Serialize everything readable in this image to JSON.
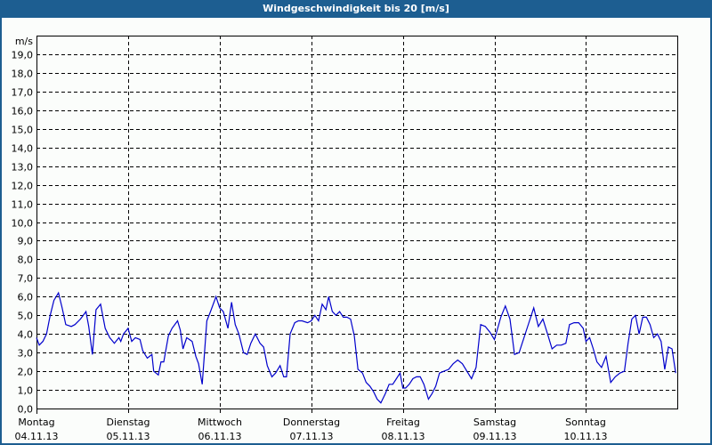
{
  "title": "Windgeschwindigkeit bis 20 [m/s]",
  "colors": {
    "titlebar": "#1d5e91",
    "background": "#fbfdfb",
    "line": "#0000cc",
    "grid": "#000000"
  },
  "chart_data": {
    "type": "line",
    "title": "Windgeschwindigkeit bis 20 [m/s]",
    "xlabel": "",
    "ylabel": "m/s",
    "ylim": [
      0,
      20
    ],
    "yticks": [
      "0,0",
      "1,0",
      "2,0",
      "3,0",
      "4,0",
      "5,0",
      "6,0",
      "7,0",
      "8,0",
      "9,0",
      "10,0",
      "11,0",
      "12,0",
      "13,0",
      "14,0",
      "15,0",
      "16,0",
      "17,0",
      "18,0",
      "19,0"
    ],
    "grid": true,
    "days": [
      {
        "weekday": "Montag",
        "date": "04.11.13"
      },
      {
        "weekday": "Dienstag",
        "date": "05.11.13"
      },
      {
        "weekday": "Mittwoch",
        "date": "06.11.13"
      },
      {
        "weekday": "Donnerstag",
        "date": "07.11.13"
      },
      {
        "weekday": "Freitag",
        "date": "08.11.13"
      },
      {
        "weekday": "Samstag",
        "date": "09.11.13"
      },
      {
        "weekday": "Sonntag",
        "date": "10.11.13"
      }
    ],
    "series": [
      {
        "name": "Windgeschwindigkeit",
        "x_days": [
          0.0,
          0.03,
          0.07,
          0.11,
          0.15,
          0.19,
          0.24,
          0.28,
          0.32,
          0.38,
          0.42,
          0.48,
          0.54,
          0.57,
          0.61,
          0.65,
          0.7,
          0.75,
          0.8,
          0.85,
          0.9,
          0.92,
          0.95,
          1.0,
          1.04,
          1.08,
          1.13,
          1.16,
          1.21,
          1.26,
          1.28,
          1.33,
          1.36,
          1.39,
          1.44,
          1.48,
          1.54,
          1.57,
          1.6,
          1.64,
          1.7,
          1.74,
          1.77,
          1.81,
          1.86,
          1.9,
          1.96,
          2.0,
          2.04,
          2.09,
          2.13,
          2.17,
          2.21,
          2.26,
          2.3,
          2.34,
          2.39,
          2.44,
          2.48,
          2.52,
          2.57,
          2.61,
          2.66,
          2.7,
          2.73,
          2.77,
          2.82,
          2.86,
          2.9,
          2.96,
          3.0,
          3.04,
          3.08,
          3.12,
          3.16,
          3.19,
          3.23,
          3.27,
          3.31,
          3.35,
          3.39,
          3.43,
          3.47,
          3.51,
          3.56,
          3.6,
          3.64,
          3.68,
          3.72,
          3.76,
          3.81,
          3.85,
          3.89,
          3.93,
          3.97,
          4.0,
          4.03,
          4.07,
          4.11,
          4.15,
          4.19,
          4.23,
          4.28,
          4.32,
          4.36,
          4.4,
          4.45,
          4.5,
          4.55,
          4.6,
          4.65,
          4.7,
          4.75,
          4.8,
          4.85,
          4.9,
          4.95,
          5.0,
          5.03,
          5.07,
          5.12,
          5.17,
          5.22,
          5.27,
          5.31,
          5.35,
          5.39,
          5.43,
          5.48,
          5.53,
          5.58,
          5.63,
          5.68,
          5.73,
          5.78,
          5.82,
          5.87,
          5.92,
          5.97,
          6.0,
          6.04,
          6.08,
          6.12,
          6.17,
          6.22,
          6.27,
          6.32,
          6.37,
          6.42,
          6.46,
          6.5,
          6.54,
          6.58,
          6.62,
          6.66,
          6.7,
          6.74,
          6.78,
          6.82,
          6.86,
          6.9,
          6.94,
          6.98
        ],
        "values": [
          3.8,
          3.4,
          3.6,
          4.0,
          5.0,
          5.8,
          6.2,
          5.4,
          4.5,
          4.4,
          4.5,
          4.8,
          5.2,
          4.4,
          2.9,
          5.3,
          5.6,
          4.3,
          3.8,
          3.5,
          3.8,
          3.6,
          4.0,
          4.3,
          3.6,
          3.8,
          3.7,
          3.1,
          2.7,
          2.9,
          2.0,
          1.8,
          2.5,
          2.5,
          3.9,
          4.3,
          4.7,
          4.2,
          3.2,
          3.8,
          3.6,
          2.8,
          2.4,
          1.3,
          4.7,
          5.2,
          6.0,
          5.4,
          5.2,
          4.3,
          5.7,
          4.5,
          4.0,
          3.0,
          2.9,
          3.5,
          4.0,
          3.5,
          3.3,
          2.3,
          1.7,
          1.9,
          2.3,
          1.7,
          1.7,
          4.0,
          4.6,
          4.7,
          4.7,
          4.6,
          4.7,
          5.0,
          4.7,
          5.6,
          5.3,
          6.0,
          5.2,
          5.0,
          5.2,
          4.9,
          4.9,
          4.8,
          3.9,
          2.1,
          1.9,
          1.4,
          1.2,
          0.9,
          0.5,
          0.3,
          0.8,
          1.3,
          1.3,
          1.6,
          1.9,
          1.1,
          1.1,
          1.3,
          1.6,
          1.7,
          1.7,
          1.3,
          0.5,
          0.8,
          1.2,
          1.9,
          2.0,
          2.1,
          2.4,
          2.6,
          2.4,
          2.0,
          1.6,
          2.2,
          4.5,
          4.4,
          4.1,
          3.7,
          4.2,
          4.9,
          5.5,
          4.8,
          2.9,
          3.0,
          3.6,
          4.2,
          4.8,
          5.4,
          4.4,
          4.8,
          4.0,
          3.2,
          3.4,
          3.4,
          3.5,
          4.5,
          4.6,
          4.6,
          4.3,
          3.6,
          3.8,
          3.2,
          2.5,
          2.2,
          2.8,
          1.4,
          1.7,
          1.9,
          2.0,
          3.5,
          4.8,
          5.0,
          4.0,
          4.9,
          4.9,
          4.5,
          3.8,
          4.0,
          3.6,
          2.1,
          3.3,
          3.2,
          1.9
        ]
      }
    ]
  }
}
